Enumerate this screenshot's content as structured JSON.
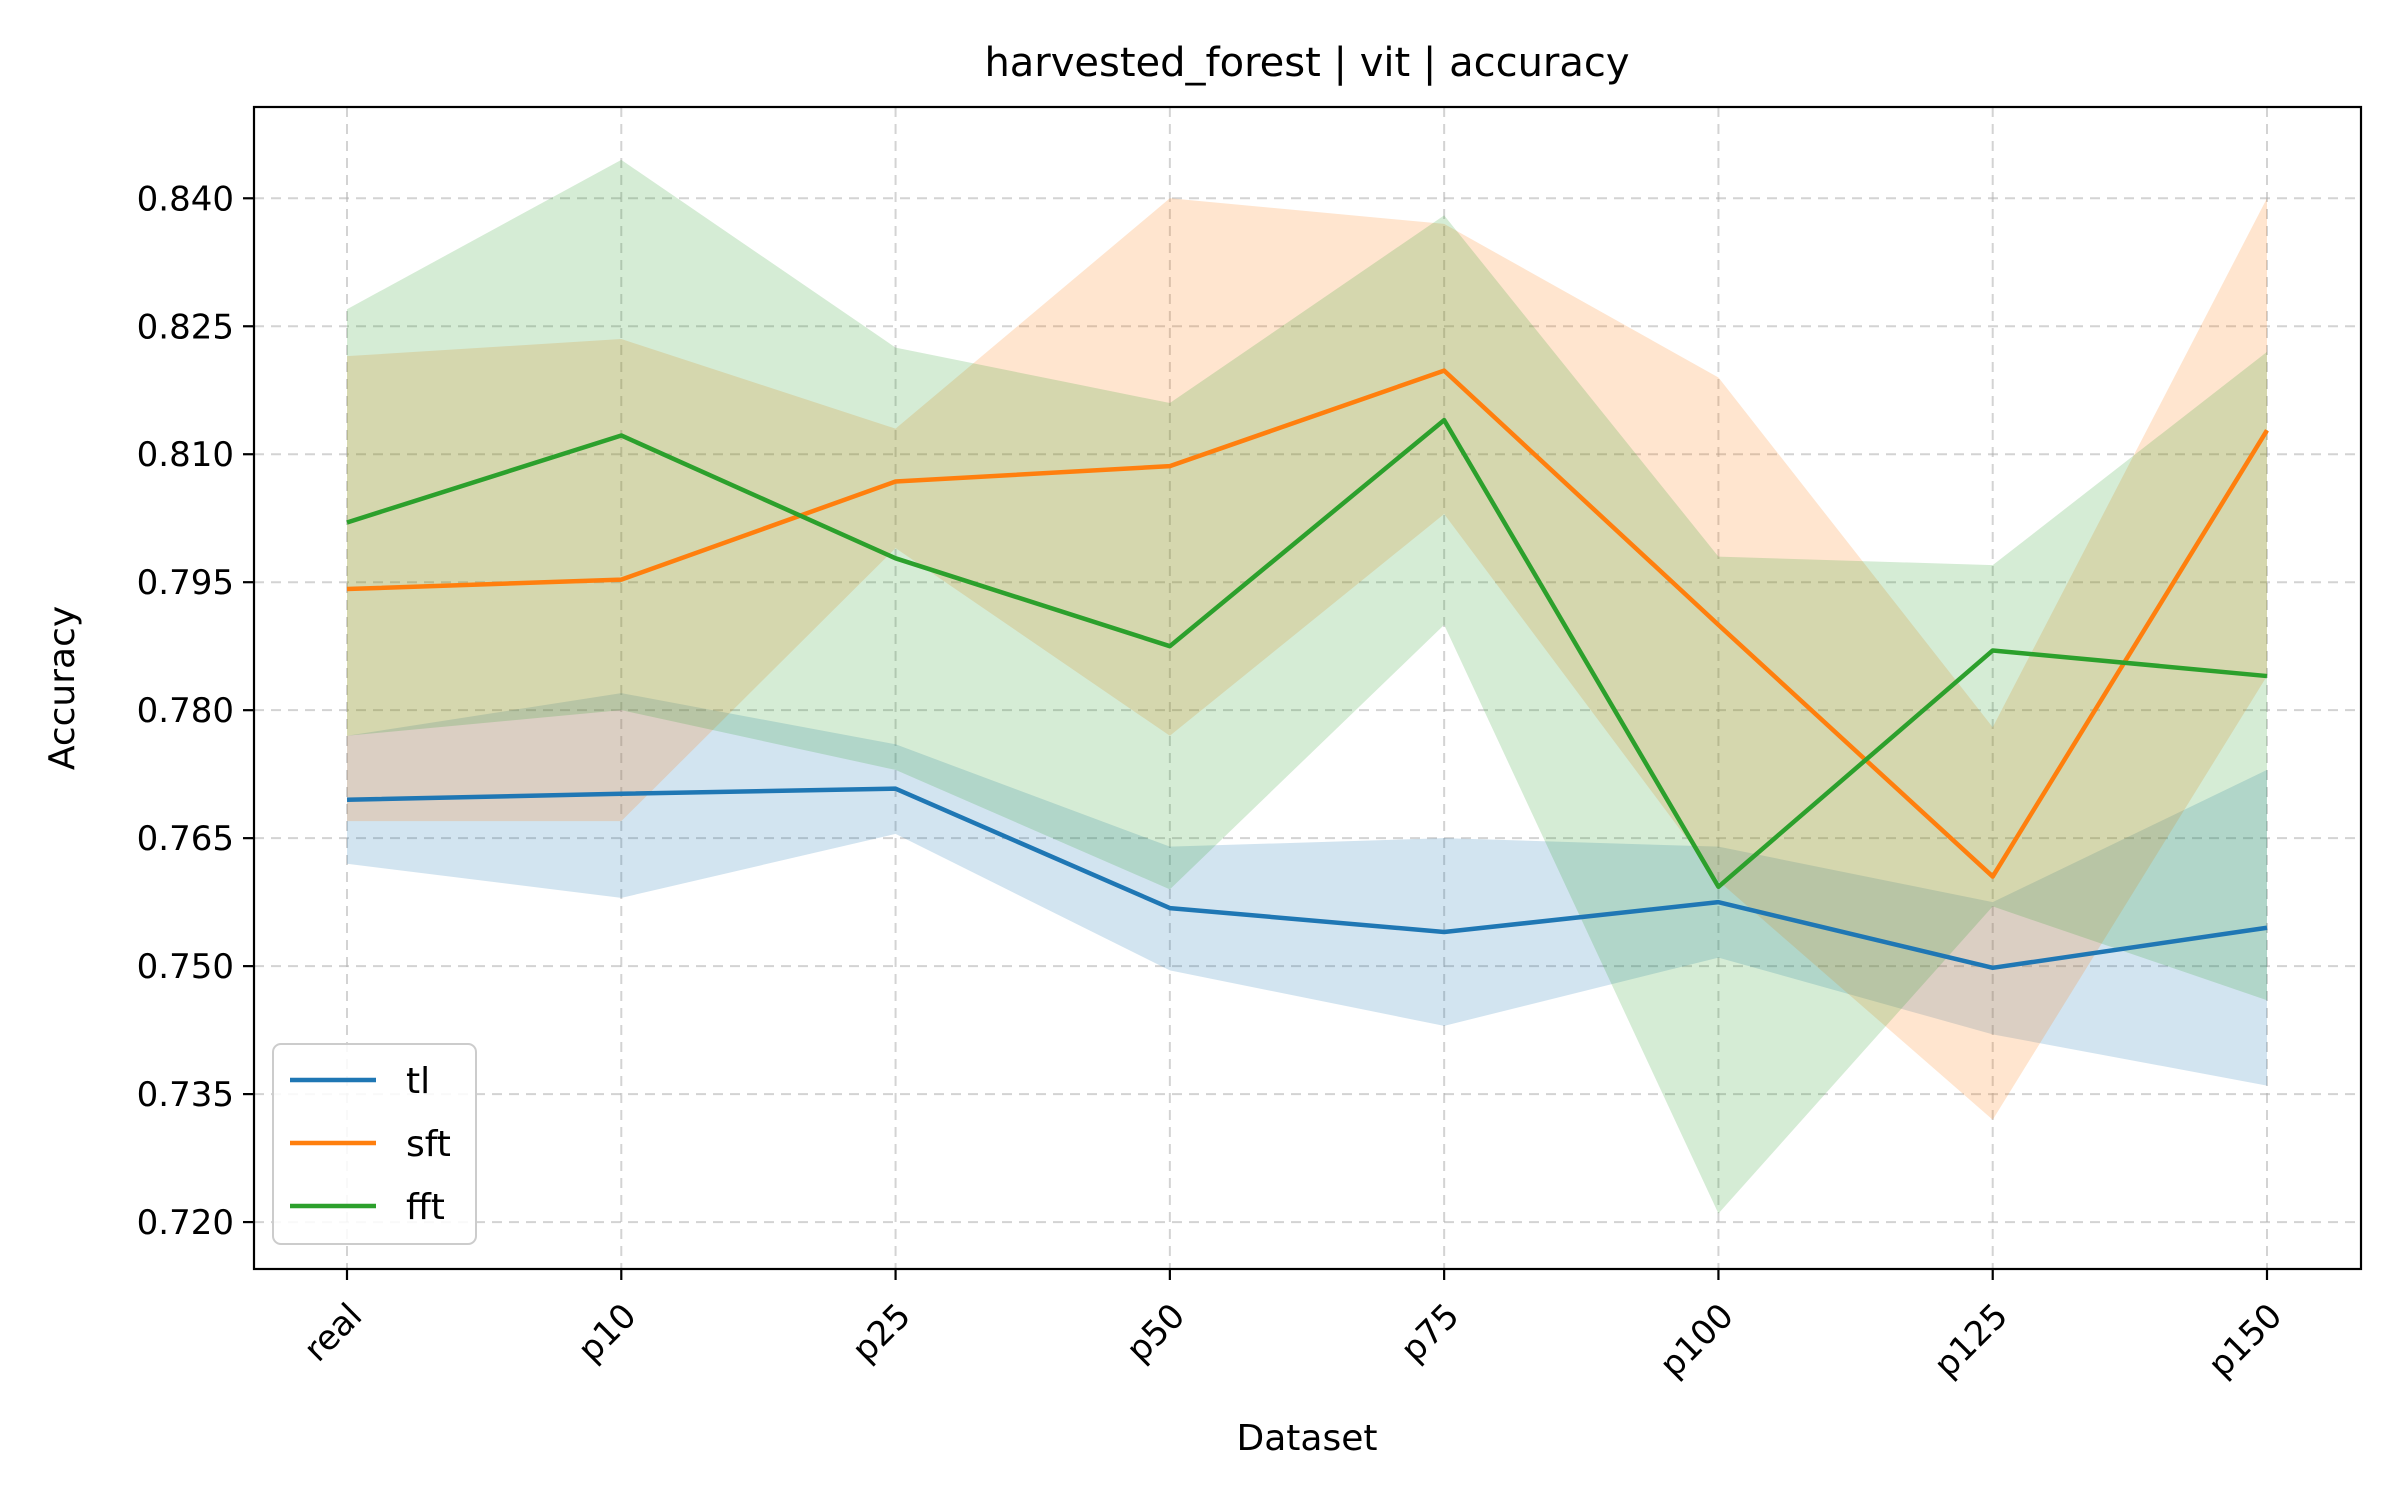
{
  "chart_data": {
    "type": "line",
    "title": "harvested_forest | vit | accuracy",
    "xlabel": "Dataset",
    "ylabel": "Accuracy",
    "categories": [
      "real",
      "p10",
      "p25",
      "p50",
      "p75",
      "p100",
      "p125",
      "p150"
    ],
    "ylim": [
      0.7145,
      0.8507
    ],
    "yticks": [
      0.72,
      0.735,
      0.75,
      0.765,
      0.78,
      0.795,
      0.81,
      0.825,
      0.84
    ],
    "ytick_labels": [
      "0.720",
      "0.735",
      "0.750",
      "0.765",
      "0.780",
      "0.795",
      "0.810",
      "0.825",
      "0.840"
    ],
    "grid": true,
    "legend_position": "bottom-left",
    "series": [
      {
        "name": "tl",
        "color": "#1f77b4",
        "values": [
          0.7695,
          0.7702,
          0.7708,
          0.7568,
          0.754,
          0.7575,
          0.7498,
          0.7545
        ],
        "lower": [
          0.762,
          0.758,
          0.7655,
          0.7495,
          0.743,
          0.751,
          0.742,
          0.736
        ],
        "upper": [
          0.777,
          0.782,
          0.776,
          0.764,
          0.765,
          0.764,
          0.7575,
          0.773
        ]
      },
      {
        "name": "sft",
        "color": "#ff7f0e",
        "values": [
          0.7942,
          0.7953,
          0.8068,
          0.8086,
          0.8198,
          0.79,
          0.7605,
          0.8128
        ],
        "lower": [
          0.767,
          0.767,
          0.799,
          0.777,
          0.803,
          0.76,
          0.732,
          0.784
        ],
        "upper": [
          0.8215,
          0.8235,
          0.813,
          0.84,
          0.837,
          0.819,
          0.778,
          0.84
        ]
      },
      {
        "name": "fft",
        "color": "#2ca02c",
        "values": [
          0.802,
          0.8122,
          0.7978,
          0.7875,
          0.814,
          0.7593,
          0.787,
          0.784
        ],
        "lower": [
          0.777,
          0.78,
          0.773,
          0.759,
          0.79,
          0.721,
          0.757,
          0.746
        ],
        "upper": [
          0.827,
          0.8445,
          0.8225,
          0.816,
          0.838,
          0.798,
          0.797,
          0.822
        ]
      }
    ]
  }
}
